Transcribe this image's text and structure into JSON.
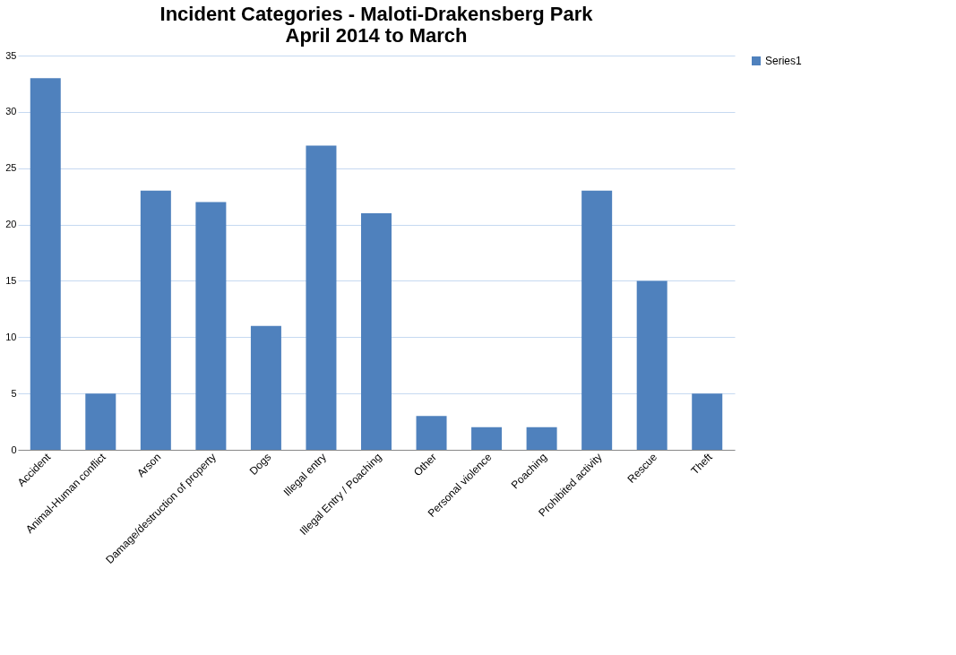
{
  "chart_data": {
    "type": "bar",
    "title": [
      "Incident Categories - Maloti-Drakensberg Park",
      "April 2014 to March"
    ],
    "categories": [
      "Accident",
      "Animal-Human conflict",
      "Arson",
      "Damage/destruction of property",
      "Dogs",
      "Illegal entry",
      "Illegal Entry / Poaching",
      "Other",
      "Personal violence",
      "Poaching",
      "Prohibited activity",
      "Rescue",
      "Theft"
    ],
    "series": [
      {
        "name": "Series1",
        "color": "#4f81bd",
        "values": [
          33,
          5,
          23,
          22,
          11,
          27,
          21,
          3,
          2,
          2,
          23,
          15,
          5
        ]
      }
    ],
    "ylim": [
      0,
      35
    ],
    "yticks": [
      0,
      5,
      10,
      15,
      20,
      25,
      30,
      35
    ],
    "grid": "y",
    "legend": "right"
  }
}
